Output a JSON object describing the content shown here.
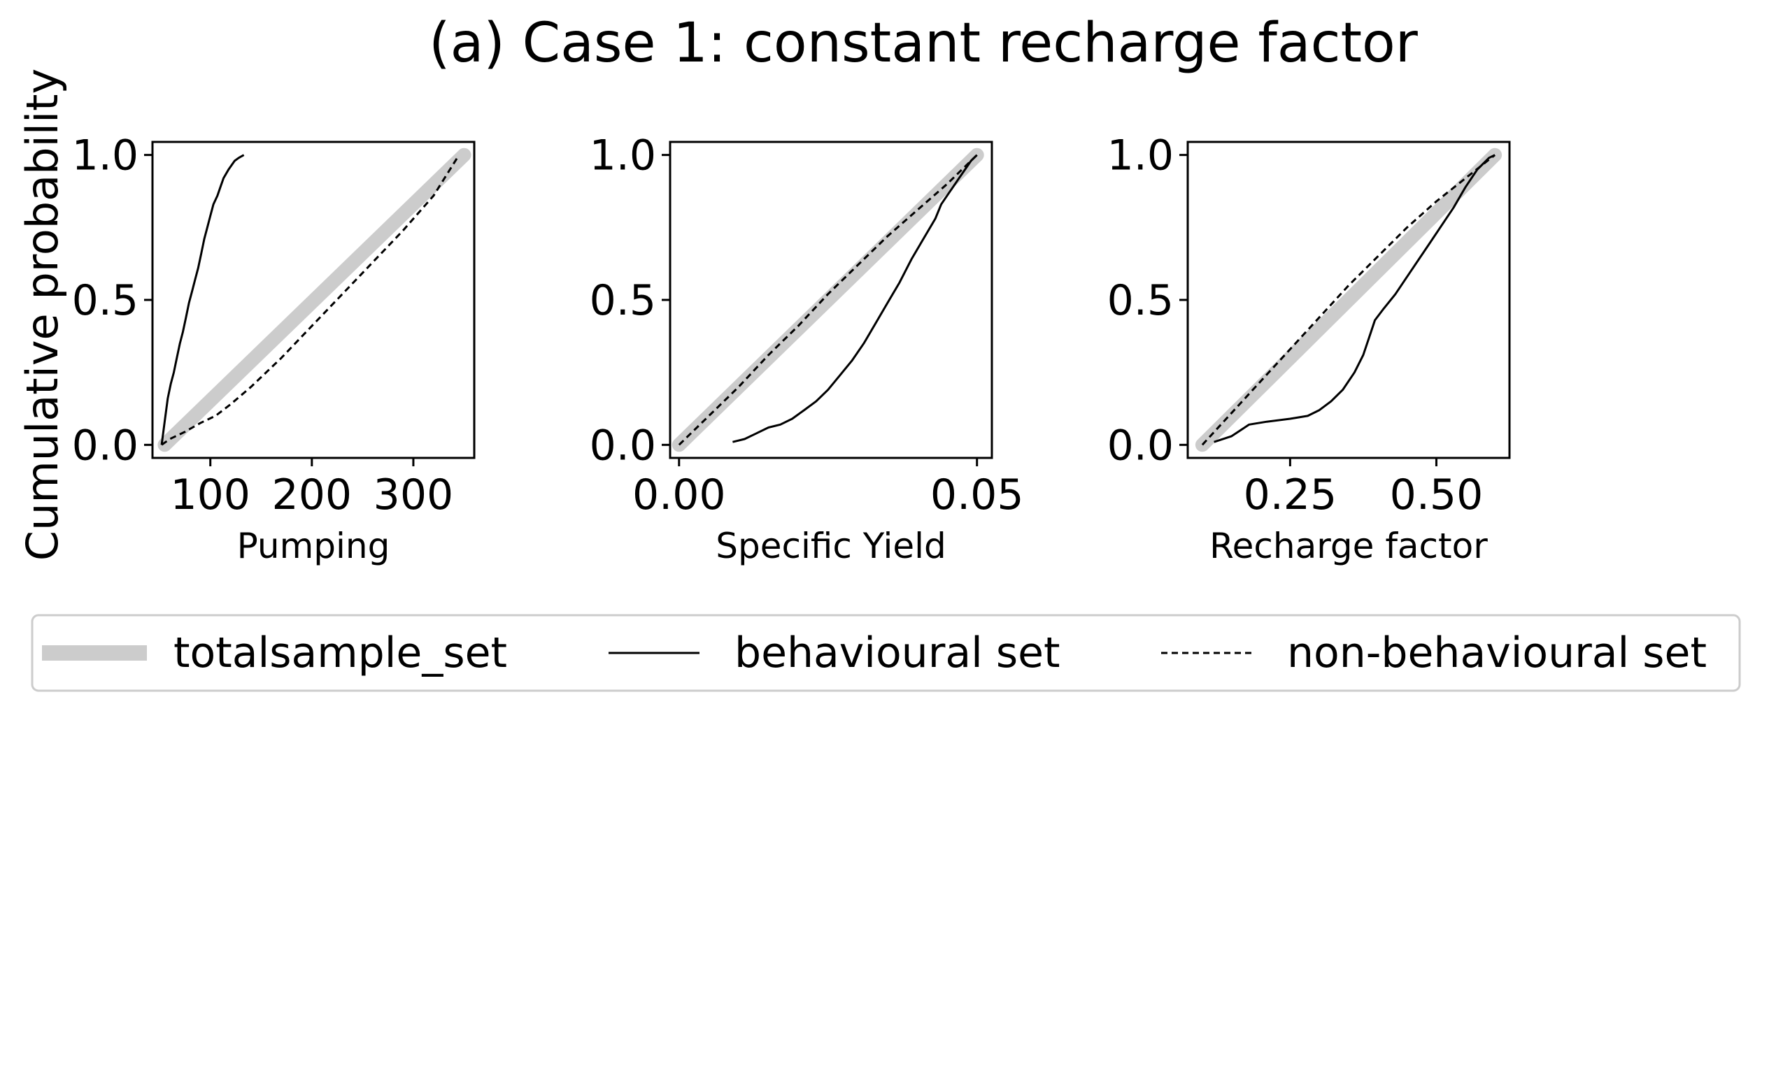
{
  "figure": {
    "title": "(a) Case 1: constant recharge factor",
    "shared_ylabel": "Cumulative probability"
  },
  "legend": {
    "placement": "bottom-center",
    "entries": [
      {
        "label": "totalsample_set",
        "style": "thick-gray-line",
        "color": "#cccccc"
      },
      {
        "label": "behavioural set",
        "style": "solid-line",
        "color": "#000000"
      },
      {
        "label": "non-behavioural set",
        "style": "dashed-line",
        "color": "#000000"
      }
    ]
  },
  "chart_data": [
    {
      "type": "line",
      "xlabel": "Pumping",
      "ylabel": "",
      "xlim": [
        43,
        360
      ],
      "ylim": [
        -0.045,
        1.045
      ],
      "xticks": [
        100,
        200,
        300
      ],
      "xtick_labels": [
        "100",
        "200",
        "300"
      ],
      "yticks": [
        0.0,
        0.5,
        1.0
      ],
      "ytick_labels": [
        "0.0",
        "0.5",
        "1.0"
      ],
      "series": [
        {
          "name": "totalsample_set",
          "x": [
            55,
            350
          ],
          "y": [
            0.0,
            1.0
          ]
        },
        {
          "name": "behavioural set",
          "x": [
            52,
            55,
            58,
            61,
            64,
            67,
            70,
            73,
            76,
            79,
            82,
            85,
            88,
            91,
            94,
            97,
            100,
            103,
            107,
            110,
            113,
            118,
            124,
            128,
            133
          ],
          "y": [
            0.0,
            0.08,
            0.16,
            0.21,
            0.25,
            0.3,
            0.35,
            0.39,
            0.44,
            0.49,
            0.53,
            0.57,
            0.61,
            0.66,
            0.71,
            0.75,
            0.79,
            0.83,
            0.86,
            0.89,
            0.92,
            0.95,
            0.98,
            0.99,
            1.0
          ]
        },
        {
          "name": "non-behavioural set",
          "x": [
            52,
            60,
            75,
            90,
            105,
            120,
            140,
            170,
            200,
            230,
            260,
            290,
            320,
            345
          ],
          "y": [
            0.0,
            0.02,
            0.045,
            0.075,
            0.1,
            0.14,
            0.2,
            0.3,
            0.41,
            0.52,
            0.63,
            0.74,
            0.86,
            1.0
          ]
        }
      ]
    },
    {
      "type": "line",
      "xlabel": "Specific Yield",
      "ylabel": "",
      "xlim": [
        -0.0015,
        0.0525
      ],
      "ylim": [
        -0.045,
        1.045
      ],
      "xticks": [
        0.0,
        0.05
      ],
      "xtick_labels": [
        "0.00",
        "0.05"
      ],
      "yticks": [
        0.0,
        0.5,
        1.0
      ],
      "ytick_labels": [
        "0.0",
        "0.5",
        "1.0"
      ],
      "series": [
        {
          "name": "totalsample_set",
          "x": [
            0.0,
            0.05
          ],
          "y": [
            0.0,
            1.0
          ]
        },
        {
          "name": "behavioural set",
          "x": [
            0.009,
            0.011,
            0.013,
            0.015,
            0.017,
            0.019,
            0.021,
            0.023,
            0.025,
            0.027,
            0.029,
            0.031,
            0.033,
            0.035,
            0.037,
            0.039,
            0.041,
            0.043,
            0.044,
            0.045,
            0.046,
            0.047,
            0.048,
            0.049,
            0.05
          ],
          "y": [
            0.01,
            0.02,
            0.04,
            0.06,
            0.07,
            0.09,
            0.12,
            0.15,
            0.19,
            0.24,
            0.29,
            0.35,
            0.42,
            0.49,
            0.56,
            0.64,
            0.71,
            0.78,
            0.83,
            0.86,
            0.89,
            0.92,
            0.95,
            0.98,
            1.0
          ]
        },
        {
          "name": "non-behavioural set",
          "x": [
            0.0,
            0.005,
            0.01,
            0.015,
            0.02,
            0.025,
            0.03,
            0.035,
            0.04,
            0.045,
            0.05
          ],
          "y": [
            0.0,
            0.1,
            0.2,
            0.31,
            0.41,
            0.52,
            0.62,
            0.72,
            0.81,
            0.9,
            1.0
          ]
        }
      ]
    },
    {
      "type": "line",
      "xlabel": "Recharge factor",
      "ylabel": "",
      "xlim": [
        0.075,
        0.625
      ],
      "ylim": [
        -0.045,
        1.045
      ],
      "xticks": [
        0.25,
        0.5
      ],
      "xtick_labels": [
        "0.25",
        "0.50"
      ],
      "yticks": [
        0.0,
        0.5,
        1.0
      ],
      "ytick_labels": [
        "0.0",
        "0.5",
        "1.0"
      ],
      "series": [
        {
          "name": "totalsample_set",
          "x": [
            0.1,
            0.6
          ],
          "y": [
            0.0,
            1.0
          ]
        },
        {
          "name": "behavioural set",
          "x": [
            0.12,
            0.15,
            0.18,
            0.21,
            0.25,
            0.28,
            0.3,
            0.32,
            0.34,
            0.36,
            0.375,
            0.385,
            0.395,
            0.41,
            0.43,
            0.45,
            0.47,
            0.49,
            0.51,
            0.53,
            0.55,
            0.57,
            0.59,
            0.6
          ],
          "y": [
            0.01,
            0.03,
            0.07,
            0.08,
            0.09,
            0.1,
            0.12,
            0.15,
            0.19,
            0.25,
            0.31,
            0.37,
            0.43,
            0.47,
            0.52,
            0.58,
            0.64,
            0.7,
            0.76,
            0.82,
            0.89,
            0.95,
            0.99,
            1.0
          ]
        },
        {
          "name": "non-behavioural set",
          "x": [
            0.1,
            0.15,
            0.2,
            0.25,
            0.3,
            0.35,
            0.4,
            0.45,
            0.5,
            0.55,
            0.6
          ],
          "y": [
            0.0,
            0.11,
            0.22,
            0.33,
            0.44,
            0.55,
            0.65,
            0.75,
            0.84,
            0.92,
            1.0
          ]
        }
      ]
    }
  ]
}
